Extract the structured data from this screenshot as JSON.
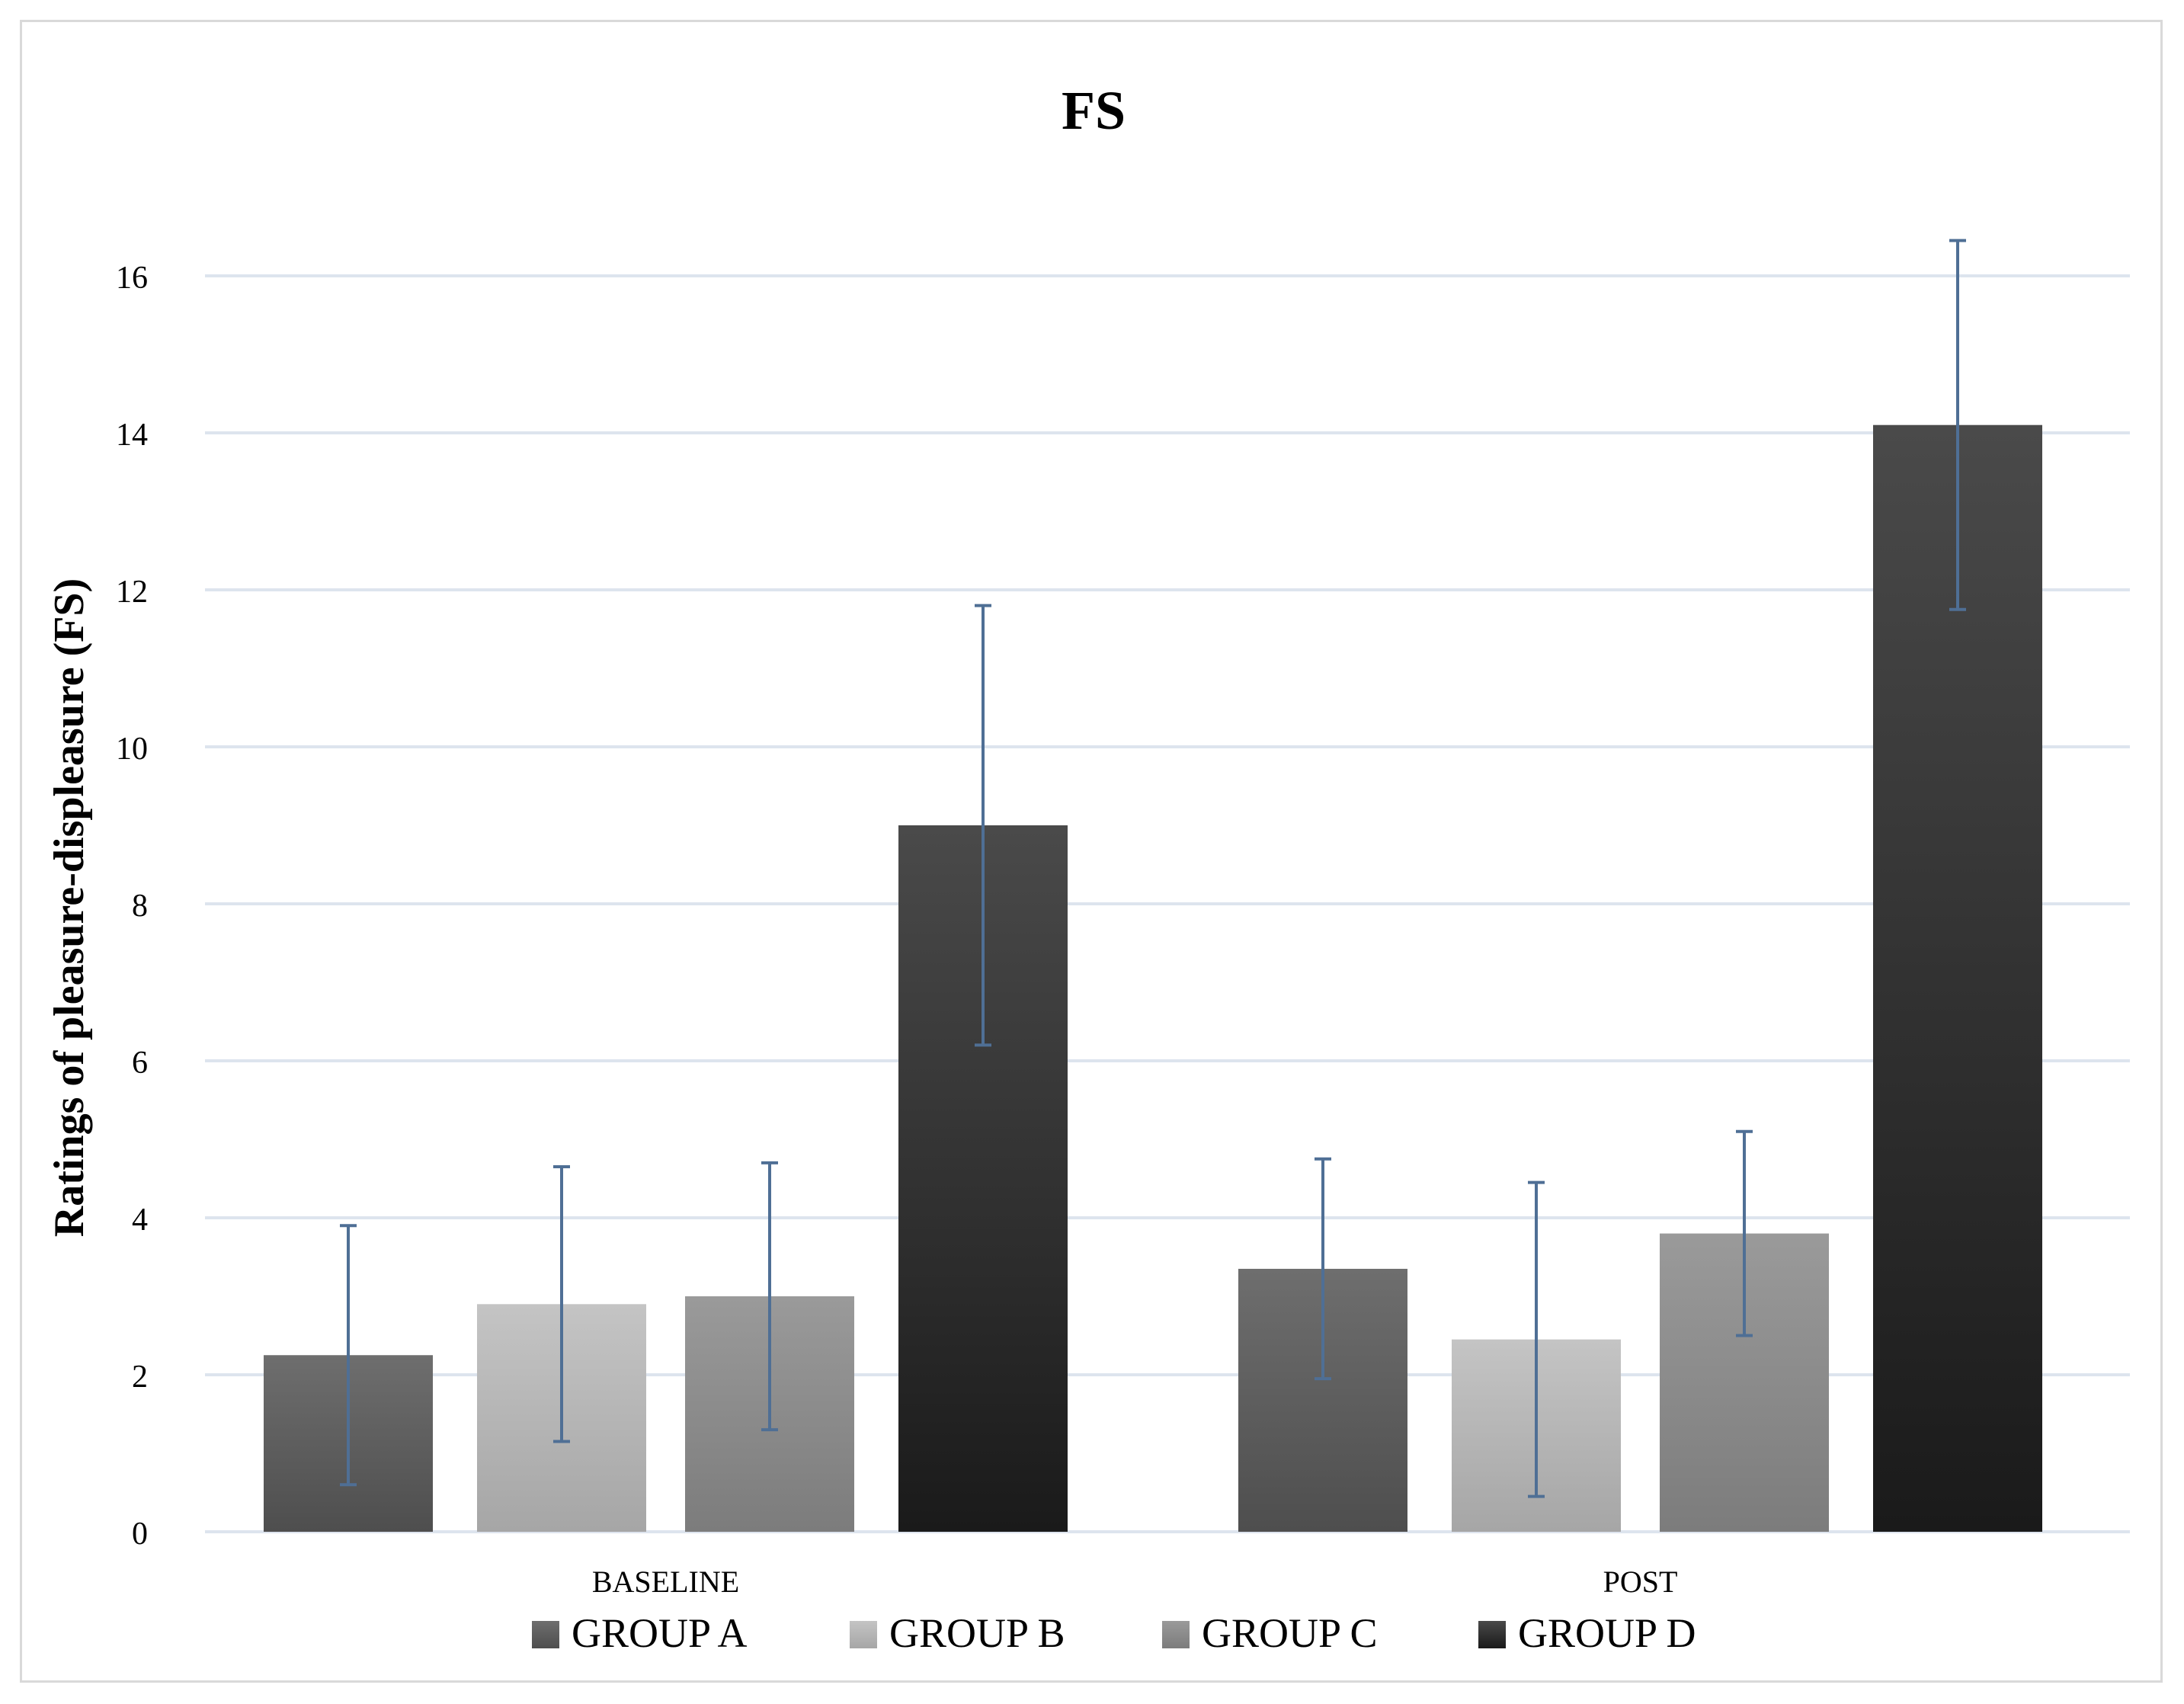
{
  "chart_data": {
    "type": "bar",
    "title": "FS",
    "xlabel": "",
    "ylabel": "Ratings of pleasure-displeasure (FS)",
    "categories": [
      "BASELINE",
      "POST"
    ],
    "ylim": [
      0,
      16
    ],
    "yticks": [
      "0",
      "2",
      "4",
      "6",
      "8",
      "10",
      "12",
      "14",
      "16"
    ],
    "grid": true,
    "legend_position": "bottom",
    "series": [
      {
        "name": "GROUP A",
        "values": [
          2.25,
          3.35
        ],
        "error": [
          1.65,
          1.4
        ],
        "color_top": "#6e6e6e",
        "color_bottom": "#4e4e4e"
      },
      {
        "name": "GROUP B",
        "values": [
          2.9,
          2.45
        ],
        "error": [
          1.75,
          2.0
        ],
        "color_top": "#c4c4c4",
        "color_bottom": "#a6a6a6"
      },
      {
        "name": "GROUP C",
        "values": [
          3.0,
          3.8
        ],
        "error": [
          1.7,
          1.3
        ],
        "color_top": "#9a9a9a",
        "color_bottom": "#7c7c7c"
      },
      {
        "name": "GROUP D",
        "values": [
          9.0,
          14.1
        ],
        "error": [
          2.8,
          2.35
        ],
        "color_top": "#4a4a4a",
        "color_bottom": "#1a1a1a"
      }
    ],
    "colors": {
      "grid": "#dde4ee",
      "error_bar": "#4f6f95",
      "text": "#000000"
    }
  }
}
